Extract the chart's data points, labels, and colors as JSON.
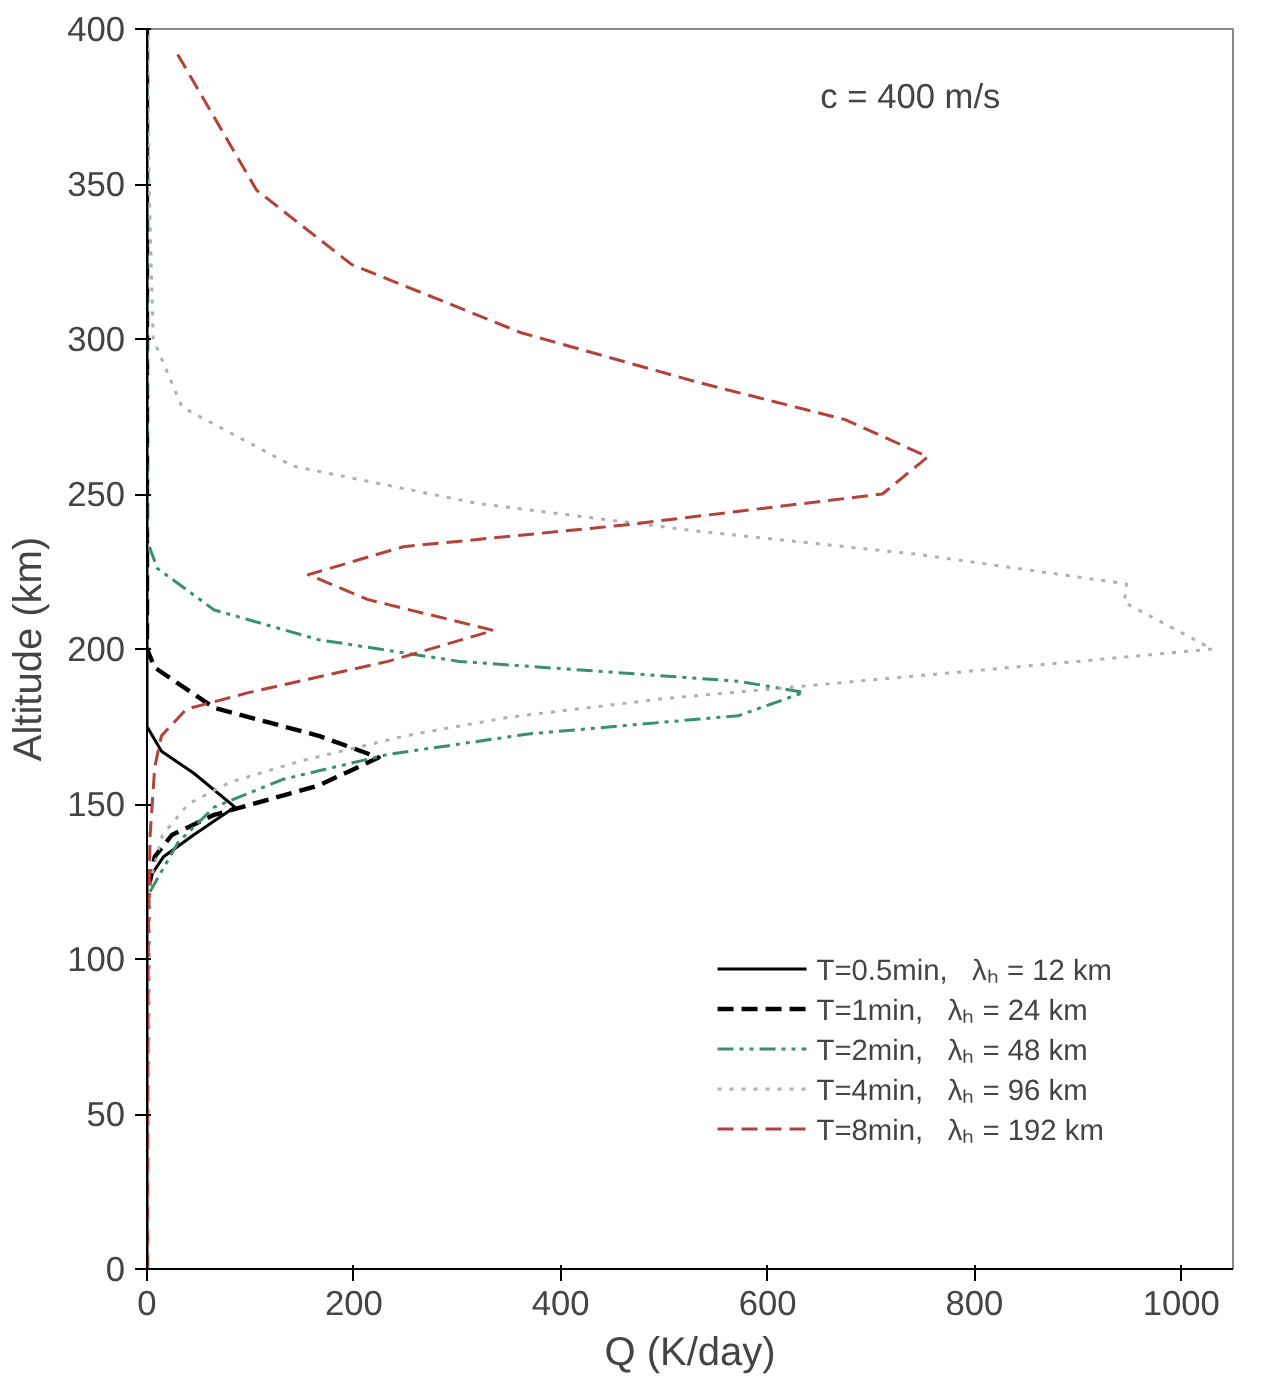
{
  "chart_data": {
    "type": "line",
    "xlabel": "Q (K/day)",
    "ylabel": "Altitude (km)",
    "annotations": [
      "c = 400 m/s"
    ],
    "xlim": [
      0,
      1050
    ],
    "xticks": [
      0,
      200,
      400,
      600,
      800,
      1000
    ],
    "ylim": [
      0,
      400
    ],
    "yticks": [
      0,
      50,
      100,
      150,
      200,
      250,
      300,
      350,
      400
    ],
    "grid": false,
    "legend": "bottom right",
    "marker": "none",
    "series": [
      {
        "name": "T=0.5min,   λₕ = 12 km",
        "color": "#000000",
        "line_style": "solid",
        "x": [
          0,
          0,
          16,
          45,
          85,
          45,
          14,
          0,
          0
        ],
        "values": [
          0,
          125,
          133,
          140,
          149,
          160,
          167,
          175,
          400
        ]
      },
      {
        "name": "T=1min,   λₕ = 24 km",
        "color": "#000000",
        "line_style": "dashed",
        "x": [
          0,
          0,
          7.5,
          24,
          65,
          166,
          224,
          166,
          65,
          7.5,
          0,
          0
        ],
        "values": [
          0,
          120,
          133,
          140,
          146.5,
          156,
          165,
          172,
          181,
          194,
          200,
          400
        ]
      },
      {
        "name": "T=2min,   λₕ = 48 km",
        "color": "#3a8f70",
        "line_style": "dashdot",
        "x": [
          0,
          0,
          30,
          65,
          132,
          233,
          369,
          572,
          635,
          572,
          302,
          166,
          65,
          10,
          0,
          0
        ],
        "values": [
          0,
          120,
          137.6,
          149,
          158,
          166,
          172.6,
          178.5,
          186,
          189.6,
          196,
          203,
          212.6,
          226,
          235,
          400
        ]
      },
      {
        "name": "T=4min,   λₕ = 96 km",
        "color": "#b0b0b0",
        "line_style": "dotted",
        "x": [
          0,
          3,
          15,
          40,
          80,
          150,
          250,
          350,
          500,
          700,
          900,
          1030,
          945,
          947,
          746,
          533,
          319,
          141,
          34,
          6,
          2,
          0.5
        ],
        "values": [
          0,
          125,
          140,
          150,
          157,
          164,
          172,
          178,
          184,
          190,
          196,
          200,
          215,
          221,
          230.5,
          238,
          247,
          259,
          278,
          300,
          350,
          400
        ]
      },
      {
        "name": "T=8min,   λₕ = 192 km",
        "color": "#b5413a",
        "line_style": "dashed",
        "x": [
          0,
          1,
          3,
          7.5,
          14,
          38,
          99,
          233,
          335,
          213,
          156,
          248,
          462,
          711,
          755,
          675,
          533,
          362,
          198,
          106,
          27.6
        ],
        "values": [
          0,
          100,
          140,
          162,
          172,
          180.6,
          186,
          196,
          206,
          216,
          224,
          233,
          240,
          250,
          262,
          274,
          286,
          302,
          324,
          348,
          393
        ]
      }
    ]
  }
}
